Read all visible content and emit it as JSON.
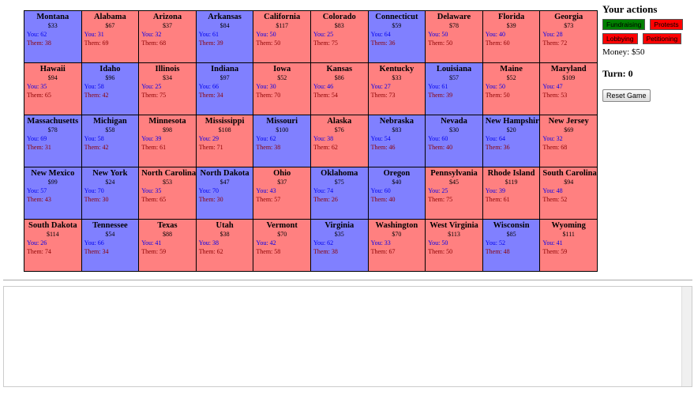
{
  "board": {
    "tiles": [
      {
        "name": "Montana",
        "price": "$33",
        "you": "You: 62",
        "them": "Them: 38",
        "color": "#8080ff"
      },
      {
        "name": "Alabama",
        "price": "$67",
        "you": "You: 31",
        "them": "Them: 69",
        "color": "#ff8080"
      },
      {
        "name": "Arizona",
        "price": "$37",
        "you": "You: 32",
        "them": "Them: 68",
        "color": "#ff8080"
      },
      {
        "name": "Arkansas",
        "price": "$84",
        "you": "You: 61",
        "them": "Them: 39",
        "color": "#8080ff"
      },
      {
        "name": "California",
        "price": "$117",
        "you": "You: 50",
        "them": "Them: 50",
        "color": "#ff8080"
      },
      {
        "name": "Colorado",
        "price": "$83",
        "you": "You: 25",
        "them": "Them: 75",
        "color": "#ff8080"
      },
      {
        "name": "Connecticut",
        "price": "$59",
        "you": "You: 64",
        "them": "Them: 36",
        "color": "#8080ff"
      },
      {
        "name": "Delaware",
        "price": "$78",
        "you": "You: 50",
        "them": "Them: 50",
        "color": "#ff8080"
      },
      {
        "name": "Florida",
        "price": "$39",
        "you": "You: 40",
        "them": "Them: 60",
        "color": "#ff8080"
      },
      {
        "name": "Georgia",
        "price": "$73",
        "you": "You: 28",
        "them": "Them: 72",
        "color": "#ff8080"
      },
      {
        "name": "Hawaii",
        "price": "$94",
        "you": "You: 35",
        "them": "Them: 65",
        "color": "#ff8080"
      },
      {
        "name": "Idaho",
        "price": "$96",
        "you": "You: 58",
        "them": "Them: 42",
        "color": "#8080ff"
      },
      {
        "name": "Illinois",
        "price": "$34",
        "you": "You: 25",
        "them": "Them: 75",
        "color": "#ff8080"
      },
      {
        "name": "Indiana",
        "price": "$97",
        "you": "You: 66",
        "them": "Them: 34",
        "color": "#8080ff"
      },
      {
        "name": "Iowa",
        "price": "$52",
        "you": "You: 30",
        "them": "Them: 70",
        "color": "#ff8080"
      },
      {
        "name": "Kansas",
        "price": "$86",
        "you": "You: 46",
        "them": "Them: 54",
        "color": "#ff8080"
      },
      {
        "name": "Kentucky",
        "price": "$33",
        "you": "You: 27",
        "them": "Them: 73",
        "color": "#ff8080"
      },
      {
        "name": "Louisiana",
        "price": "$57",
        "you": "You: 61",
        "them": "Them: 39",
        "color": "#8080ff"
      },
      {
        "name": "Maine",
        "price": "$52",
        "you": "You: 50",
        "them": "Them: 50",
        "color": "#ff8080"
      },
      {
        "name": "Maryland",
        "price": "$109",
        "you": "You: 47",
        "them": "Them: 53",
        "color": "#ff8080"
      },
      {
        "name": "Massachusetts",
        "price": "$78",
        "you": "You: 69",
        "them": "Them: 31",
        "color": "#8080ff"
      },
      {
        "name": "Michigan",
        "price": "$58",
        "you": "You: 58",
        "them": "Them: 42",
        "color": "#8080ff"
      },
      {
        "name": "Minnesota",
        "price": "$98",
        "you": "You: 39",
        "them": "Them: 61",
        "color": "#ff8080"
      },
      {
        "name": "Mississippi",
        "price": "$108",
        "you": "You: 29",
        "them": "Them: 71",
        "color": "#ff8080"
      },
      {
        "name": "Missouri",
        "price": "$100",
        "you": "You: 62",
        "them": "Them: 38",
        "color": "#8080ff"
      },
      {
        "name": "Alaska",
        "price": "$76",
        "you": "You: 38",
        "them": "Them: 62",
        "color": "#ff8080"
      },
      {
        "name": "Nebraska",
        "price": "$83",
        "you": "You: 54",
        "them": "Them: 46",
        "color": "#8080ff"
      },
      {
        "name": "Nevada",
        "price": "$30",
        "you": "You: 60",
        "them": "Them: 40",
        "color": "#8080ff"
      },
      {
        "name": "New Hampshire",
        "price": "$20",
        "you": "You: 64",
        "them": "Them: 36",
        "color": "#8080ff"
      },
      {
        "name": "New Jersey",
        "price": "$69",
        "you": "You: 32",
        "them": "Them: 68",
        "color": "#ff8080"
      },
      {
        "name": "New Mexico",
        "price": "$99",
        "you": "You: 57",
        "them": "Them: 43",
        "color": "#8080ff"
      },
      {
        "name": "New York",
        "price": "$24",
        "you": "You: 70",
        "them": "Them: 30",
        "color": "#8080ff"
      },
      {
        "name": "North Carolina",
        "price": "$53",
        "you": "You: 35",
        "them": "Them: 65",
        "color": "#ff8080"
      },
      {
        "name": "North Dakota",
        "price": "$47",
        "you": "You: 70",
        "them": "Them: 30",
        "color": "#8080ff"
      },
      {
        "name": "Ohio",
        "price": "$37",
        "you": "You: 43",
        "them": "Them: 57",
        "color": "#ff8080"
      },
      {
        "name": "Oklahoma",
        "price": "$75",
        "you": "You: 74",
        "them": "Them: 26",
        "color": "#8080ff"
      },
      {
        "name": "Oregon",
        "price": "$40",
        "you": "You: 60",
        "them": "Them: 40",
        "color": "#8080ff"
      },
      {
        "name": "Pennsylvania",
        "price": "$45",
        "you": "You: 25",
        "them": "Them: 75",
        "color": "#ff8080"
      },
      {
        "name": "Rhode Island",
        "price": "$119",
        "you": "You: 39",
        "them": "Them: 61",
        "color": "#ff8080"
      },
      {
        "name": "South Carolina",
        "price": "$94",
        "you": "You: 48",
        "them": "Them: 52",
        "color": "#ff8080"
      },
      {
        "name": "South Dakota",
        "price": "$114",
        "you": "You: 26",
        "them": "Them: 74",
        "color": "#ff8080"
      },
      {
        "name": "Tennessee",
        "price": "$54",
        "you": "You: 66",
        "them": "Them: 34",
        "color": "#8080ff"
      },
      {
        "name": "Texas",
        "price": "$88",
        "you": "You: 41",
        "them": "Them: 59",
        "color": "#ff8080"
      },
      {
        "name": "Utah",
        "price": "$38",
        "you": "You: 38",
        "them": "Them: 62",
        "color": "#ff8080"
      },
      {
        "name": "Vermont",
        "price": "$70",
        "you": "You: 42",
        "them": "Them: 58",
        "color": "#ff8080"
      },
      {
        "name": "Virginia",
        "price": "$35",
        "you": "You: 62",
        "them": "Them: 38",
        "color": "#8080ff"
      },
      {
        "name": "Washington",
        "price": "$70",
        "you": "You: 33",
        "them": "Them: 67",
        "color": "#ff8080"
      },
      {
        "name": "West Virginia",
        "price": "$113",
        "you": "You: 50",
        "them": "Them: 50",
        "color": "#ff8080"
      },
      {
        "name": "Wisconsin",
        "price": "$85",
        "you": "You: 52",
        "them": "Them: 48",
        "color": "#8080ff"
      },
      {
        "name": "Wyoming",
        "price": "$111",
        "you": "You: 41",
        "them": "Them: 59",
        "color": "#ff8080"
      }
    ]
  },
  "sidebar": {
    "title": "Your actions",
    "actions": [
      {
        "label": "Fundraising",
        "color": "#008000"
      },
      {
        "label": "Protests",
        "color": "#ff0000"
      },
      {
        "label": "Lobbying",
        "color": "#ff0000"
      },
      {
        "label": "Petitioning",
        "color": "#ff0000"
      }
    ],
    "money": "Money: $50",
    "turn": "Turn: 0",
    "reset": "Reset Game"
  }
}
